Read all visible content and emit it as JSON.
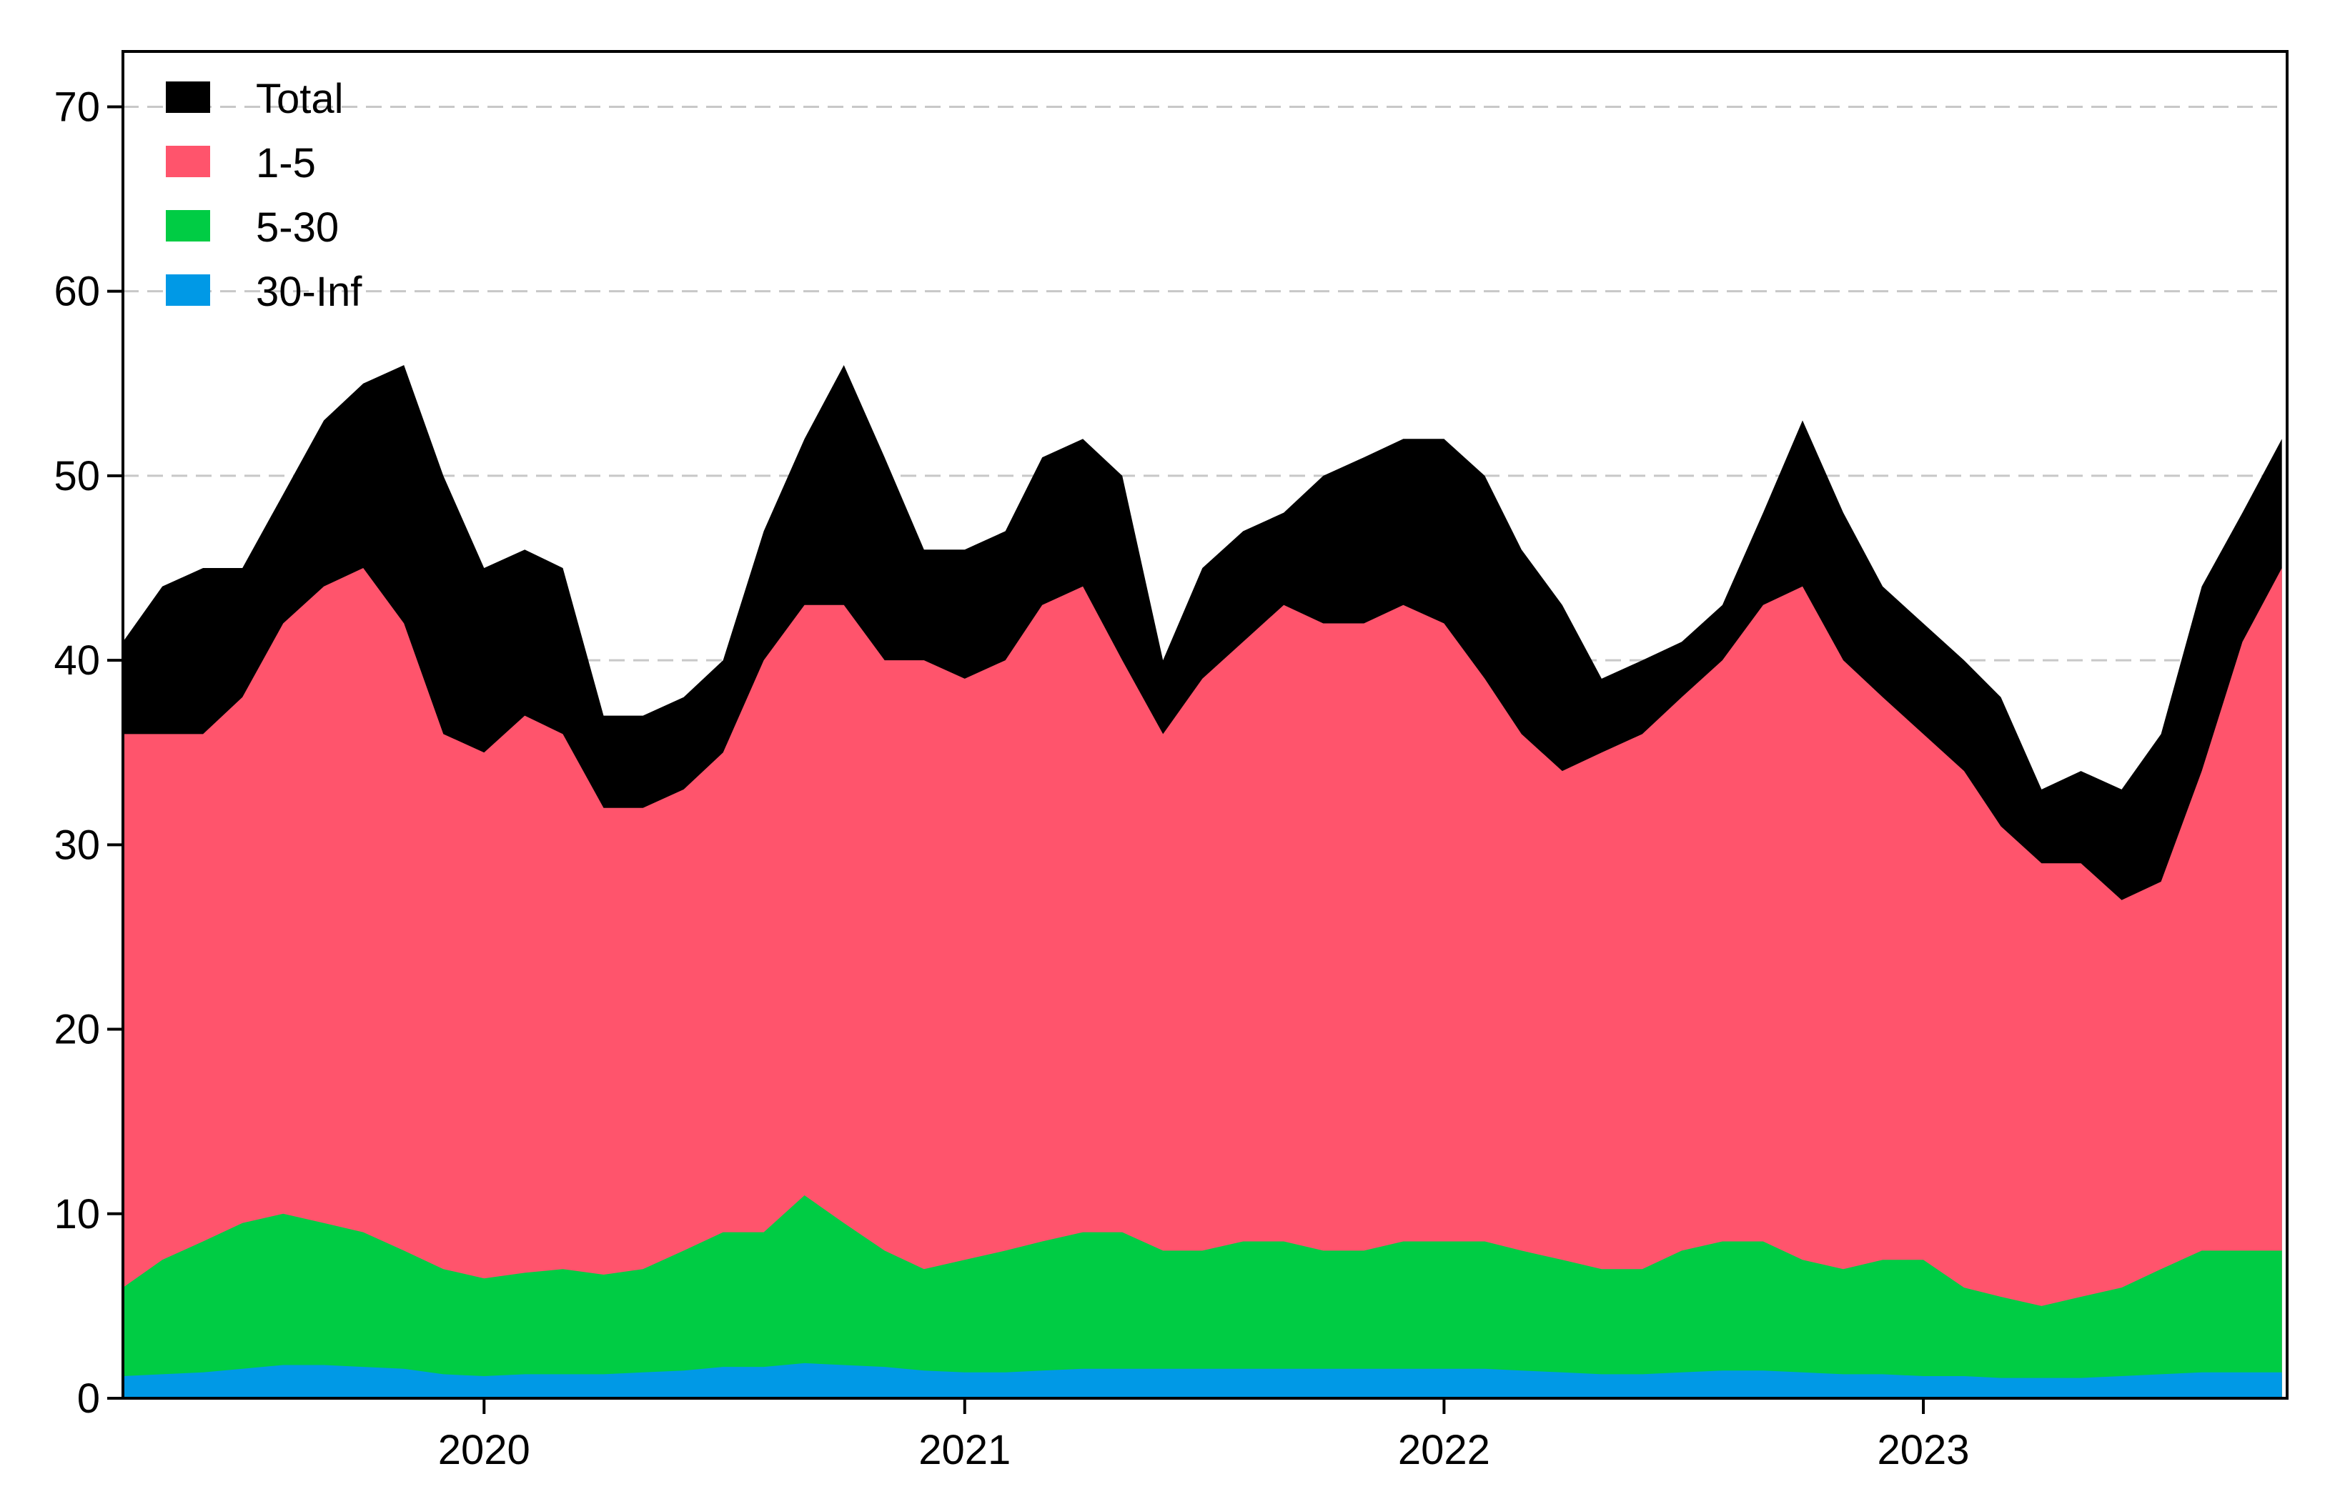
{
  "chart_data": {
    "type": "area",
    "stacked": true,
    "title": "",
    "xlabel": "",
    "ylabel": "",
    "ylim": [
      0,
      73
    ],
    "xlim": [
      "2019-04-01",
      "2023-10-05"
    ],
    "yticks": [
      0,
      10,
      20,
      30,
      40,
      50,
      60,
      70
    ],
    "xticks": [
      {
        "date": "2020-01-01",
        "label": "2020"
      },
      {
        "date": "2021-01-01",
        "label": "2021"
      },
      {
        "date": "2022-01-01",
        "label": "2022"
      },
      {
        "date": "2023-01-01",
        "label": "2023"
      }
    ],
    "grid": {
      "horizontal": true,
      "style": "dashed",
      "vertical": false
    },
    "legend_position": "top-left",
    "x": [
      "2019-04-01",
      "2019-05-01",
      "2019-06-01",
      "2019-07-01",
      "2019-08-01",
      "2019-09-01",
      "2019-10-01",
      "2019-11-01",
      "2019-12-01",
      "2020-01-01",
      "2020-02-01",
      "2020-03-01",
      "2020-04-01",
      "2020-05-01",
      "2020-06-01",
      "2020-07-01",
      "2020-08-01",
      "2020-09-01",
      "2020-10-01",
      "2020-11-01",
      "2020-12-01",
      "2021-01-01",
      "2021-02-01",
      "2021-03-01",
      "2021-04-01",
      "2021-05-01",
      "2021-06-01",
      "2021-07-01",
      "2021-08-01",
      "2021-09-01",
      "2021-10-01",
      "2021-11-01",
      "2021-12-01",
      "2022-01-01",
      "2022-02-01",
      "2022-03-01",
      "2022-04-01",
      "2022-05-01",
      "2022-06-01",
      "2022-07-01",
      "2022-08-01",
      "2022-09-01",
      "2022-10-01",
      "2022-11-01",
      "2022-12-01",
      "2023-01-01",
      "2023-02-01",
      "2023-03-01",
      "2023-04-01",
      "2023-05-01",
      "2023-06-01",
      "2023-07-01",
      "2023-08-01",
      "2023-09-01",
      "2023-10-01"
    ],
    "series": [
      {
        "name": "Total",
        "color": "#000000",
        "values": [
          41,
          44,
          45,
          45,
          49,
          53,
          55,
          56,
          50,
          45,
          46,
          45,
          37,
          37,
          38,
          40,
          47,
          52,
          56,
          51,
          46,
          46,
          47,
          51,
          52,
          50,
          40,
          45,
          47,
          48,
          50,
          51,
          52,
          52,
          50,
          46,
          43,
          39,
          40,
          41,
          43,
          48,
          53,
          48,
          44,
          42,
          40,
          38,
          33,
          34,
          33,
          36,
          44,
          48,
          52
        ]
      },
      {
        "name": "1-5",
        "color": "#FF546C",
        "values": [
          36,
          36,
          36,
          38,
          42,
          44,
          45,
          42,
          36,
          35,
          37,
          36,
          32,
          32,
          33,
          35,
          40,
          43,
          43,
          40,
          40,
          39,
          40,
          43,
          44,
          40,
          36,
          39,
          41,
          43,
          42,
          42,
          43,
          42,
          39,
          36,
          34,
          35,
          36,
          38,
          40,
          43,
          44,
          40,
          38,
          36,
          34,
          31,
          29,
          29,
          27,
          28,
          34,
          41,
          45
        ]
      },
      {
        "name": "5-30",
        "color": "#00CC44",
        "values": [
          6,
          7.5,
          8.5,
          9.5,
          10,
          9.5,
          9,
          8,
          7,
          6.5,
          6.8,
          7,
          6.7,
          7,
          8,
          9,
          9,
          11,
          9.5,
          8,
          7,
          7.5,
          8,
          8.5,
          9,
          9,
          8,
          8,
          8.5,
          8.5,
          8,
          8,
          8.5,
          8.5,
          8.5,
          8,
          7.5,
          7,
          7,
          8,
          8.5,
          8.5,
          7.5,
          7,
          7.5,
          7.5,
          6,
          5.5,
          5,
          5.5,
          6,
          7,
          8,
          8,
          8
        ]
      },
      {
        "name": "30-Inf",
        "color": "#0099E6",
        "values": [
          1.2,
          1.3,
          1.4,
          1.6,
          1.8,
          1.8,
          1.7,
          1.6,
          1.3,
          1.2,
          1.3,
          1.3,
          1.3,
          1.4,
          1.5,
          1.7,
          1.7,
          1.9,
          1.8,
          1.7,
          1.5,
          1.4,
          1.4,
          1.5,
          1.6,
          1.6,
          1.6,
          1.6,
          1.6,
          1.6,
          1.6,
          1.6,
          1.6,
          1.6,
          1.6,
          1.5,
          1.4,
          1.3,
          1.3,
          1.4,
          1.5,
          1.5,
          1.4,
          1.3,
          1.3,
          1.2,
          1.2,
          1.1,
          1.1,
          1.1,
          1.2,
          1.3,
          1.4,
          1.4,
          1.4
        ]
      }
    ]
  }
}
